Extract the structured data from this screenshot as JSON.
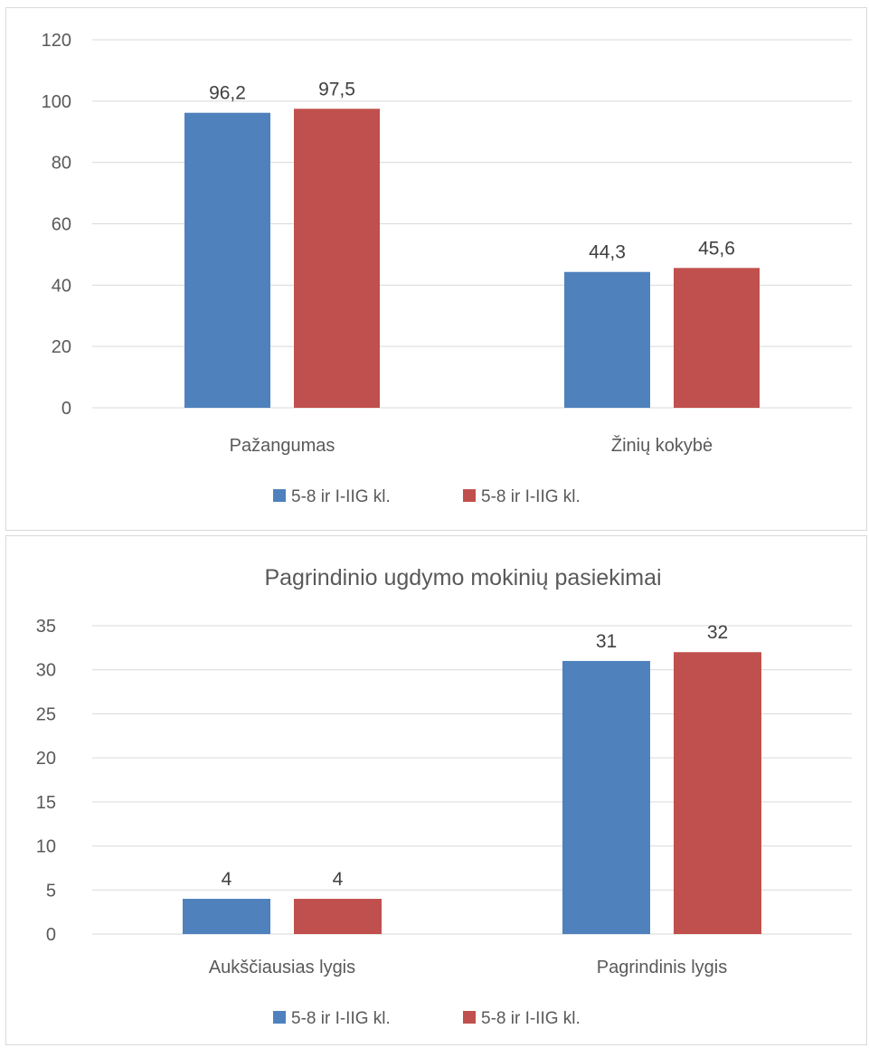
{
  "chart_data": [
    {
      "type": "bar",
      "title": "",
      "categories": [
        "Pažangumas",
        "Žinių kokybė"
      ],
      "series": [
        {
          "name": "5-8 ir I-IIG kl.",
          "values": [
            96.2,
            44.3
          ],
          "labels": [
            "96,2",
            "44,3"
          ],
          "color": "#4f81bd"
        },
        {
          "name": "5-8 ir I-IIG kl.",
          "values": [
            97.5,
            45.6
          ],
          "labels": [
            "97,5",
            "45,6"
          ],
          "color": "#c0504d"
        }
      ],
      "ylim": [
        0,
        120
      ],
      "yticks": [
        "0",
        "20",
        "40",
        "60",
        "80",
        "100",
        "120"
      ],
      "grid": true,
      "legend": "bottom"
    },
    {
      "type": "bar",
      "title": "Pagrindinio ugdymo mokinių pasiekimai",
      "categories": [
        "Aukščiausias lygis",
        "Pagrindinis lygis"
      ],
      "series": [
        {
          "name": "5-8 ir I-IIG kl.",
          "values": [
            4,
            31
          ],
          "labels": [
            "4",
            "31"
          ],
          "color": "#4f81bd"
        },
        {
          "name": "5-8 ir I-IIG kl.",
          "values": [
            4,
            32
          ],
          "labels": [
            "4",
            "32"
          ],
          "color": "#c0504d"
        }
      ],
      "ylim": [
        0,
        35
      ],
      "yticks": [
        "0",
        "5",
        "10",
        "15",
        "20",
        "25",
        "30",
        "35"
      ],
      "grid": true,
      "legend": "bottom"
    }
  ]
}
